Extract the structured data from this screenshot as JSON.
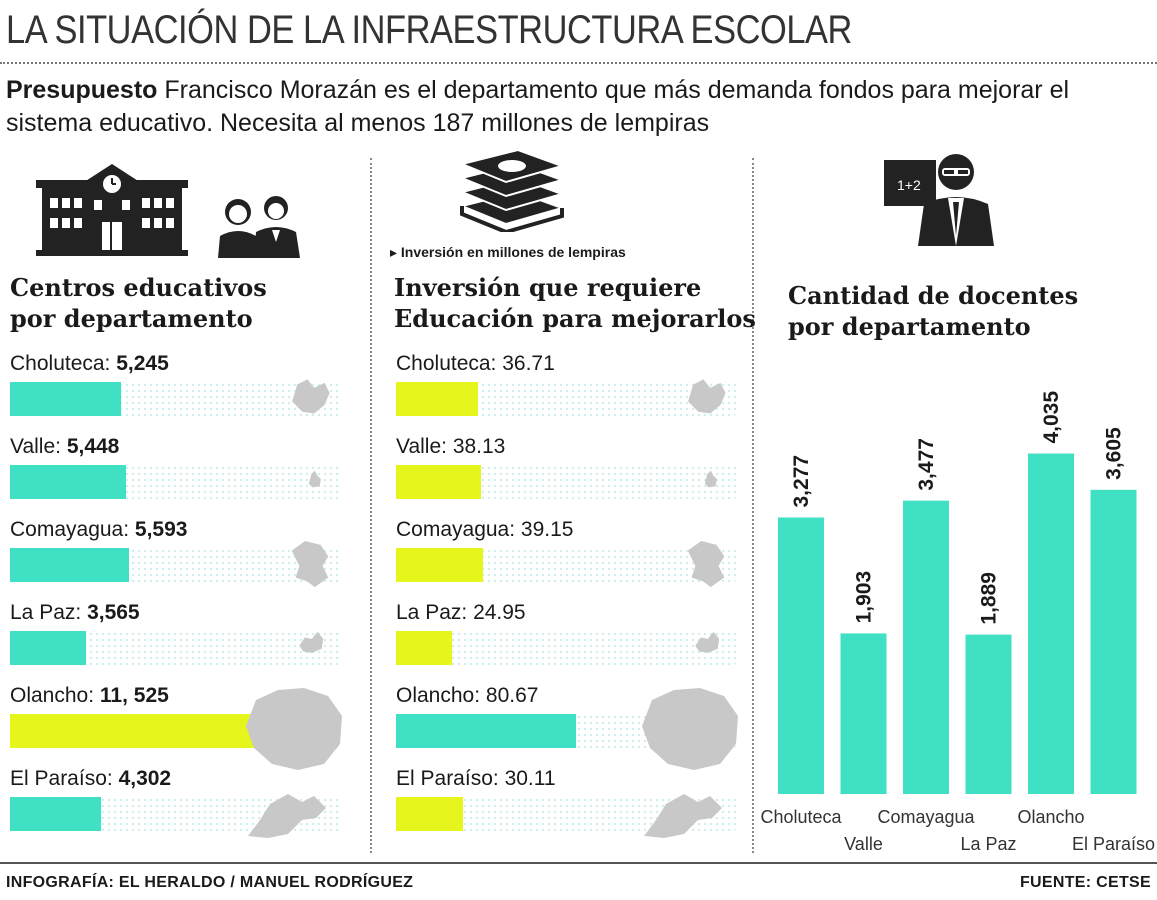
{
  "title": "LA SITUACIÓN DE LA INFRAESTRUCTURA ESCOLAR",
  "subtitle": {
    "lead": "Presupuesto",
    "text": " Francisco Morazán es el departamento que más demanda fondos para mejorar el sistema educativo. Necesita al menos 187 millones de lempiras"
  },
  "colors": {
    "teal": "#40e0c4",
    "yellow": "#e6f51c",
    "grey_map": "#c8c8c8",
    "icon_dark": "#222222"
  },
  "icons": [
    "school-building-icon",
    "students-icon",
    "money-stack-icon",
    "teacher-icon"
  ],
  "note": "▸ Inversión en millones de lempiras",
  "footer": {
    "credit": "INFOGRAFÍA: EL HERALDO / MANUEL RODRÍGUEZ",
    "source": "FUENTE: CETSE"
  },
  "chart_data": [
    {
      "type": "bar",
      "orientation": "horizontal",
      "title": "Centros educativos por departamento",
      "title_lines": [
        "Centros educativos",
        "por departamento"
      ],
      "categories": [
        "Choluteca",
        "Valle",
        "Comayagua",
        "La Paz",
        "Olancho",
        "El Paraíso"
      ],
      "values": [
        5245,
        5448,
        5593,
        3565,
        11525,
        4302
      ],
      "value_labels": [
        "5,245",
        "5,448",
        "5,593",
        "3,565",
        "11, 525",
        "4,302"
      ],
      "highlight": "Olancho",
      "xlim": [
        0,
        16000
      ]
    },
    {
      "type": "bar",
      "orientation": "horizontal",
      "title": "Inversión que requiere Educación para mejorarlos",
      "title_lines": [
        "Inversión que requiere",
        "Educación para mejorarlos"
      ],
      "categories": [
        "Choluteca",
        "Valle",
        "Comayagua",
        "La Paz",
        "Olancho",
        "El Paraíso"
      ],
      "values": [
        36.71,
        38.13,
        39.15,
        24.95,
        80.67,
        30.11
      ],
      "value_labels": [
        "36.71",
        "38.13",
        "39.15",
        "24.95",
        "80.67",
        "30.11"
      ],
      "highlight": "Olancho",
      "unit": "millones de lempiras",
      "xlim": [
        0,
        112
      ]
    },
    {
      "type": "bar",
      "orientation": "vertical",
      "title": "Cantidad de docentes por departamento",
      "title_lines": [
        "Cantidad de docentes",
        "por departamento"
      ],
      "categories": [
        "Choluteca",
        "Valle",
        "Comayagua",
        "La Paz",
        "Olancho",
        "El Paraíso"
      ],
      "values": [
        3277,
        1903,
        3477,
        1889,
        4035,
        3605
      ],
      "value_labels": [
        "3,277",
        "1,903",
        "3,477",
        "1,889",
        "4,035",
        "3,605"
      ],
      "ylim": [
        0,
        4800
      ]
    }
  ]
}
